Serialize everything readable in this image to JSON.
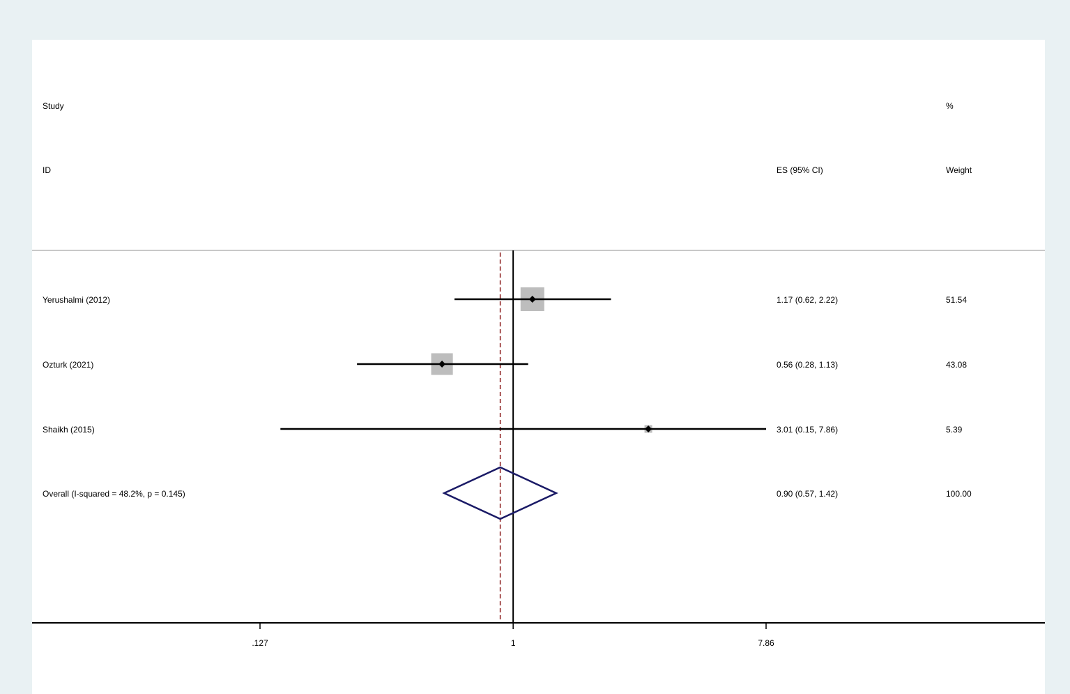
{
  "chart_data": {
    "type": "forest",
    "headers": {
      "study_line1": "Study",
      "study_line2": "ID",
      "es_line2": "ES (95% CI)",
      "weight_line1": "%",
      "weight_line2": "Weight"
    },
    "studies": [
      {
        "label": "Yerushalmi (2012)",
        "es": 1.17,
        "lo": 0.62,
        "hi": 2.22,
        "es_text": "1.17 (0.62, 2.22)",
        "weight": 51.54,
        "weight_text": "51.54"
      },
      {
        "label": "Ozturk (2021)",
        "es": 0.56,
        "lo": 0.28,
        "hi": 1.13,
        "es_text": "0.56 (0.28, 1.13)",
        "weight": 43.08,
        "weight_text": "43.08"
      },
      {
        "label": "Shaikh (2015)",
        "es": 3.01,
        "lo": 0.15,
        "hi": 7.86,
        "es_text": "3.01 (0.15, 7.86)",
        "weight": 5.39,
        "weight_text": "5.39"
      }
    ],
    "overall": {
      "label": "Overall  (I-squared = 48.2%, p = 0.145)",
      "es": 0.9,
      "lo": 0.57,
      "hi": 1.42,
      "es_text": "0.90 (0.57, 1.42)",
      "weight_text": "100.00"
    },
    "x_scale": "log",
    "xlim": [
      0.127,
      7.86
    ],
    "ticks": [
      {
        "value": 0.127,
        "label": ".127"
      },
      {
        "value": 1,
        "label": "1"
      },
      {
        "value": 7.86,
        "label": "7.86"
      }
    ],
    "null_line": 1,
    "colors": {
      "background": "#e9f1f3",
      "plot_bg": "#ffffff",
      "weight_box": "#bdbdbd",
      "diamond": "#1a1a66",
      "overall_line": "#8b1a1a",
      "separator": "#c8c8c8"
    }
  }
}
